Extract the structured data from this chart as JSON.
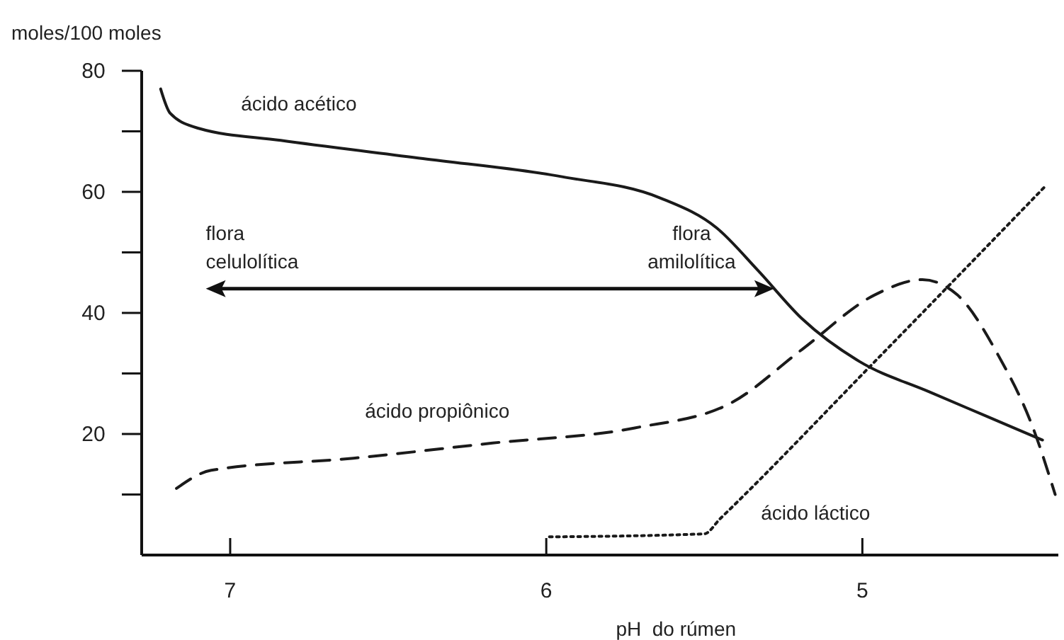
{
  "chart_data": {
    "type": "line",
    "xlabel": "pH  do rúmen",
    "ylabel": "moles/100 moles",
    "xlim": [
      7.28,
      4.38
    ],
    "ylim": [
      0,
      80
    ],
    "xticks": [
      7,
      6,
      5
    ],
    "yticks": [
      {
        "value": 10,
        "label": null
      },
      20,
      {
        "value": 30,
        "label": null
      },
      40,
      {
        "value": 50,
        "label": null
      },
      60,
      {
        "value": 70,
        "label": null
      },
      80
    ],
    "grid": false,
    "marker": "none",
    "annotations": [
      "flora celulolítica",
      "flora amilolítica"
    ],
    "series": [
      {
        "name": "ácido acético",
        "color": "#1a1a1a",
        "line_style": "solid",
        "x": [
          7.22,
          7.19,
          7.1,
          6.84,
          6.39,
          5.95,
          5.64,
          5.46,
          5.33,
          5.19,
          5.01,
          4.79,
          4.61,
          4.43
        ],
        "values": [
          77,
          73,
          70.5,
          68.5,
          65.5,
          62.5,
          59,
          54,
          47,
          39,
          32,
          27,
          23,
          19
        ]
      },
      {
        "name": "ácido propiônico",
        "color": "#1a1a1a",
        "line_style": "dashed",
        "x": [
          7.17,
          7.06,
          6.61,
          6.17,
          5.72,
          5.42,
          5.19,
          4.96,
          4.81,
          4.7,
          4.57,
          4.46,
          4.39
        ],
        "values": [
          11,
          14,
          16,
          18.5,
          21,
          25,
          34,
          43,
          45.5,
          43,
          33,
          21,
          10
        ]
      },
      {
        "name": "ácido láctico",
        "color": "#1a1a1a",
        "line_style": "dotted",
        "x": [
          5.99,
          5.5,
          5.45,
          4.96,
          4.42
        ],
        "values": [
          3,
          3.5,
          6,
          32,
          61
        ]
      }
    ]
  }
}
